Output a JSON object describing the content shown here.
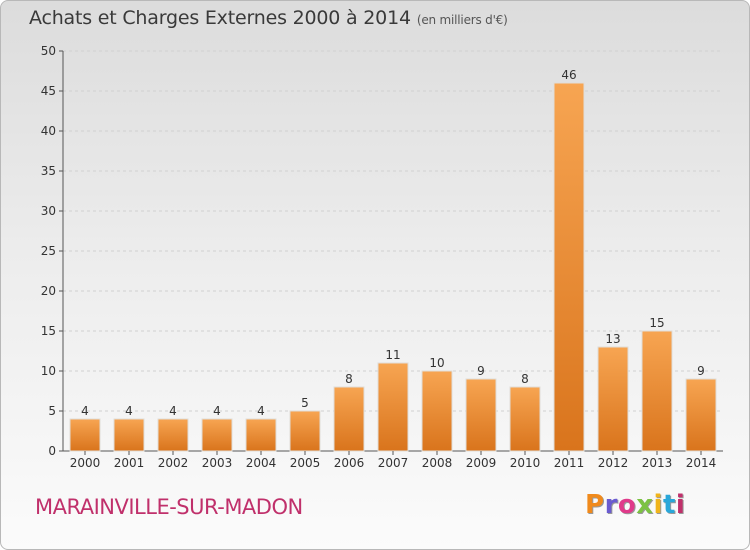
{
  "chart_data": {
    "type": "bar",
    "title": "Achats et Charges Externes 2000 à 2014",
    "subtitle": "(en milliers d'€)",
    "categories": [
      "2000",
      "2001",
      "2002",
      "2003",
      "2004",
      "2005",
      "2006",
      "2007",
      "2008",
      "2009",
      "2010",
      "2011",
      "2012",
      "2013",
      "2014"
    ],
    "values": [
      4,
      4,
      4,
      4,
      4,
      5,
      8,
      11,
      10,
      9,
      8,
      46,
      13,
      15,
      9
    ],
    "ylim": [
      0,
      50
    ],
    "yticks": [
      0,
      5,
      10,
      15,
      20,
      25,
      30,
      35,
      40,
      45,
      50
    ],
    "grid": true,
    "bar_color": "#f0902f"
  },
  "footer": {
    "commune": "MARAINVILLE-SUR-MADON",
    "logo": [
      "P",
      "r",
      "o",
      "x",
      "i",
      "t",
      "i"
    ],
    "logo_colors": [
      "#f08a1c",
      "#6a5bd0",
      "#e03a8a",
      "#7cc242",
      "#f0b41c",
      "#2aa7d9",
      "#c0306b"
    ]
  }
}
